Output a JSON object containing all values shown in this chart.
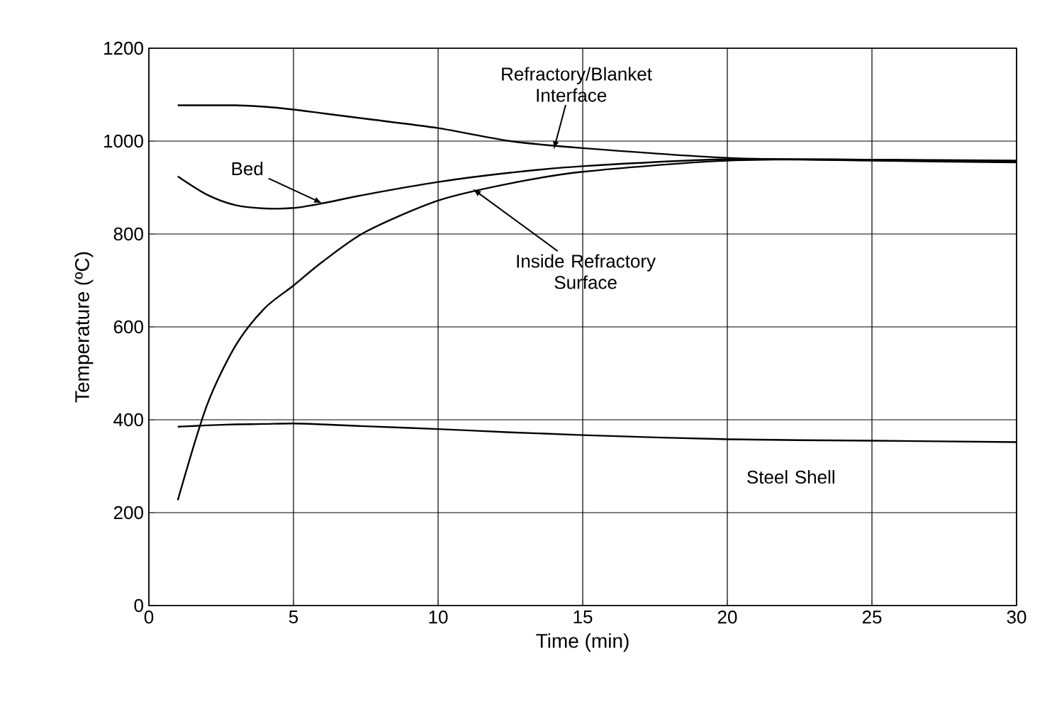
{
  "chart_data": {
    "type": "line",
    "xlabel": "Time (min)",
    "ylabel": "Temperature (ºC)",
    "xlim": [
      0,
      30
    ],
    "xticks": [
      0,
      5,
      10,
      15,
      20,
      25,
      30
    ],
    "ylim": [
      0,
      1200
    ],
    "yticks": [
      0,
      200,
      400,
      600,
      800,
      1000,
      1200
    ],
    "grid": true,
    "marker": "none",
    "line_style": "solid",
    "x": [
      1,
      2,
      3,
      4,
      5,
      6,
      7.5,
      10,
      12.5,
      15,
      20,
      25,
      30
    ],
    "series": [
      {
        "color": "#000000",
        "values": [
          1077,
          1077,
          1077,
          1074,
          1068,
          1060,
          1048,
          1028,
          1000,
          985,
          964,
          958,
          954
        ]
      },
      {
        "color": "#000000",
        "values": [
          924,
          885,
          862,
          855,
          856,
          866,
          885,
          912,
          932,
          946,
          961,
          960,
          958
        ]
      },
      {
        "color": "#000000",
        "values": [
          227,
          430,
          560,
          640,
          689,
          740,
          805,
          872,
          909,
          934,
          958,
          960,
          955
        ]
      },
      {
        "color": "#000000",
        "values": [
          385,
          388,
          390,
          391,
          392,
          390,
          386,
          380,
          373,
          367,
          358,
          355,
          352
        ]
      }
    ],
    "annotations": [
      {
        "text": "Refractory/Blanket Interface",
        "x": 14,
        "y": 982
      },
      {
        "text": "Bed",
        "x": 6,
        "y": 866
      },
      {
        "text": "Inside Refractory Surface",
        "x": 11.2,
        "y": 897
      },
      {
        "text": "Steel Shell",
        "x": 22.3,
        "y": 357
      }
    ]
  }
}
